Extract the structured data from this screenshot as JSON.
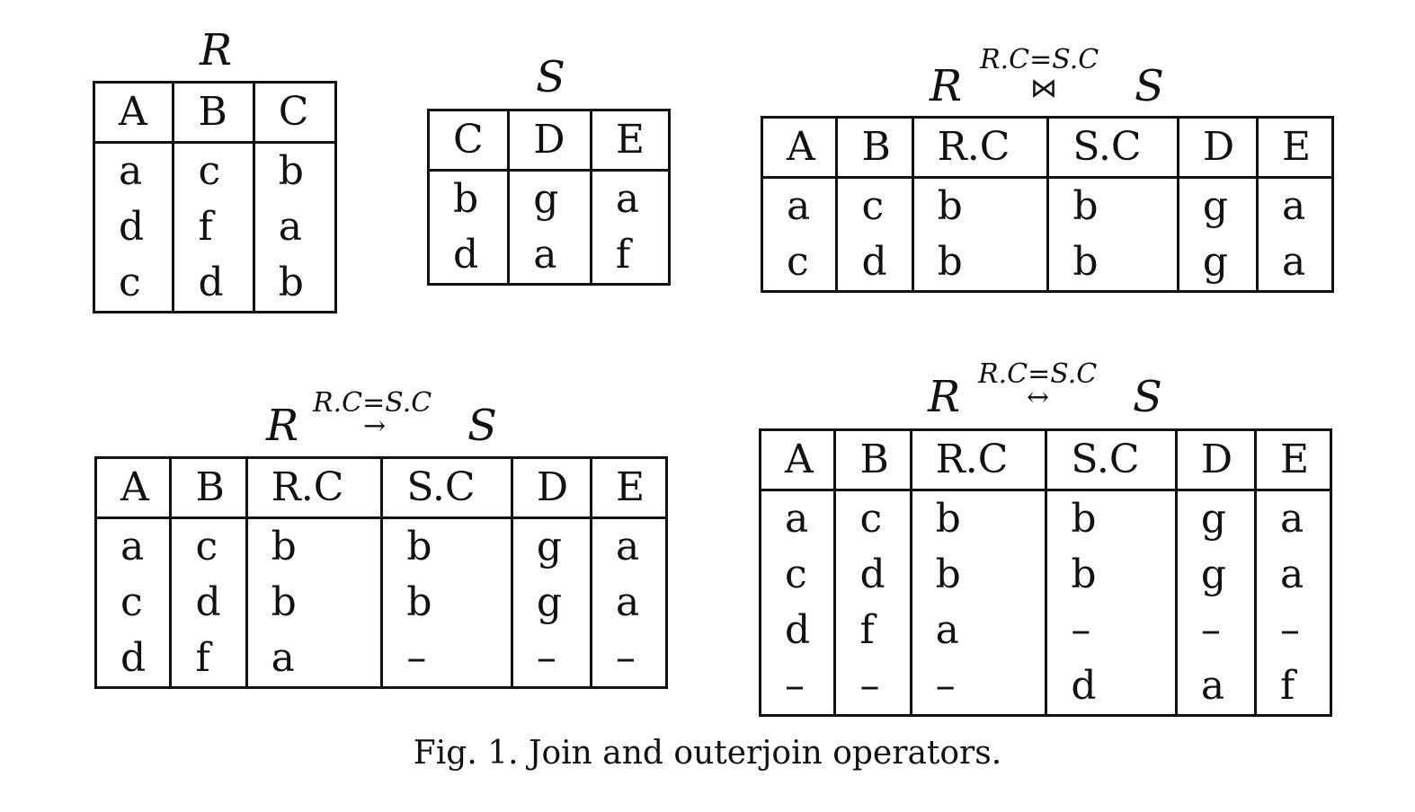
{
  "tables": [
    {
      "id": "R",
      "title": "R",
      "headers": [
        "A",
        "B",
        "C"
      ],
      "rows": [
        [
          "a",
          "c",
          "b"
        ],
        [
          "d",
          "f",
          "a"
        ],
        [
          "c",
          "d",
          "b"
        ]
      ]
    },
    {
      "id": "S",
      "title": "S",
      "headers": [
        "C",
        "D",
        "E"
      ],
      "rows": [
        [
          "b",
          "g",
          "a"
        ],
        [
          "d",
          "a",
          "f"
        ]
      ]
    },
    {
      "id": "join",
      "title_left": "R",
      "title_right": "S",
      "condition": "R.C=S.C",
      "operator": "⋈",
      "headers": [
        "A",
        "B",
        "R.C",
        "S.C",
        "D",
        "E"
      ],
      "rows": [
        [
          "a",
          "c",
          "b",
          "b",
          "g",
          "a"
        ],
        [
          "c",
          "d",
          "b",
          "b",
          "g",
          "a"
        ]
      ]
    },
    {
      "id": "left_outer",
      "title_left": "R",
      "title_right": "S",
      "condition": "R.C=S.C",
      "operator": "→",
      "headers": [
        "A",
        "B",
        "R.C",
        "S.C",
        "D",
        "E"
      ],
      "rows": [
        [
          "a",
          "c",
          "b",
          "b",
          "g",
          "a"
        ],
        [
          "c",
          "d",
          "b",
          "b",
          "g",
          "a"
        ],
        [
          "d",
          "f",
          "a",
          "–",
          "–",
          "–"
        ]
      ]
    },
    {
      "id": "full_outer",
      "title_left": "R",
      "title_right": "S",
      "condition": "R.C=S.C",
      "operator": "↔",
      "headers": [
        "A",
        "B",
        "R.C",
        "S.C",
        "D",
        "E"
      ],
      "rows": [
        [
          "a",
          "c",
          "b",
          "b",
          "g",
          "a"
        ],
        [
          "c",
          "d",
          "b",
          "b",
          "g",
          "a"
        ],
        [
          "d",
          "f",
          "a",
          "–",
          "–",
          "–"
        ],
        [
          "–",
          "–",
          "–",
          "d",
          "a",
          "f"
        ]
      ]
    }
  ],
  "caption": "Fig. 1.   Join and outerjoin operators."
}
